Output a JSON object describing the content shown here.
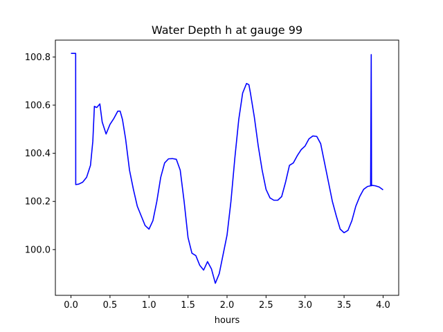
{
  "chart_data": {
    "type": "line",
    "title": "Water Depth h at gauge 99",
    "xlabel": "hours",
    "ylabel": "",
    "xlim": [
      -0.2,
      4.2
    ],
    "ylim": [
      99.81,
      100.87
    ],
    "xticks": [
      0.0,
      0.5,
      1.0,
      1.5,
      2.0,
      2.5,
      3.0,
      3.5,
      4.0
    ],
    "xtick_labels": [
      "0.0",
      "0.5",
      "1.0",
      "1.5",
      "2.0",
      "2.5",
      "3.0",
      "3.5",
      "4.0"
    ],
    "yticks": [
      100.0,
      100.2,
      100.4,
      100.6,
      100.8
    ],
    "ytick_labels": [
      "100.0",
      "100.2",
      "100.4",
      "100.6",
      "100.8"
    ],
    "grid": false,
    "legend": "none",
    "line_color": "#0000ff",
    "series": [
      {
        "x": [
          0.0,
          0.06,
          0.061,
          0.1,
          0.15,
          0.2,
          0.25,
          0.28,
          0.3,
          0.33,
          0.37,
          0.4,
          0.45,
          0.5,
          0.55,
          0.6,
          0.63,
          0.66,
          0.7,
          0.75,
          0.8,
          0.85,
          0.9,
          0.95,
          1.0,
          1.05,
          1.1,
          1.15,
          1.2,
          1.25,
          1.3,
          1.35,
          1.4,
          1.45,
          1.5,
          1.55,
          1.6,
          1.65,
          1.7,
          1.75,
          1.8,
          1.85,
          1.9,
          1.95,
          2.0,
          2.05,
          2.1,
          2.15,
          2.2,
          2.25,
          2.28,
          2.3,
          2.35,
          2.4,
          2.45,
          2.5,
          2.55,
          2.6,
          2.65,
          2.7,
          2.75,
          2.8,
          2.85,
          2.9,
          2.95,
          3.0,
          3.05,
          3.1,
          3.15,
          3.2,
          3.25,
          3.3,
          3.35,
          3.4,
          3.45,
          3.5,
          3.55,
          3.6,
          3.65,
          3.7,
          3.75,
          3.8,
          3.84,
          3.848,
          3.852,
          3.856,
          3.9,
          3.95,
          4.0
        ],
        "y": [
          100.815,
          100.815,
          100.27,
          100.272,
          100.28,
          100.3,
          100.35,
          100.45,
          100.595,
          100.59,
          100.605,
          100.53,
          100.48,
          100.52,
          100.545,
          100.575,
          100.575,
          100.54,
          100.46,
          100.33,
          100.25,
          100.18,
          100.14,
          100.1,
          100.085,
          100.12,
          100.2,
          100.3,
          100.36,
          100.377,
          100.378,
          100.375,
          100.33,
          100.2,
          100.05,
          99.985,
          99.975,
          99.935,
          99.915,
          99.95,
          99.92,
          99.86,
          99.9,
          99.98,
          100.06,
          100.2,
          100.38,
          100.54,
          100.65,
          100.69,
          100.685,
          100.65,
          100.55,
          100.43,
          100.33,
          100.25,
          100.215,
          100.205,
          100.205,
          100.22,
          100.28,
          100.35,
          100.36,
          100.39,
          100.415,
          100.43,
          100.46,
          100.472,
          100.47,
          100.44,
          100.36,
          100.28,
          100.2,
          100.14,
          100.085,
          100.07,
          100.08,
          100.12,
          100.18,
          100.22,
          100.25,
          100.262,
          100.265,
          100.81,
          100.265,
          100.267,
          100.265,
          100.26,
          100.248
        ]
      }
    ]
  }
}
